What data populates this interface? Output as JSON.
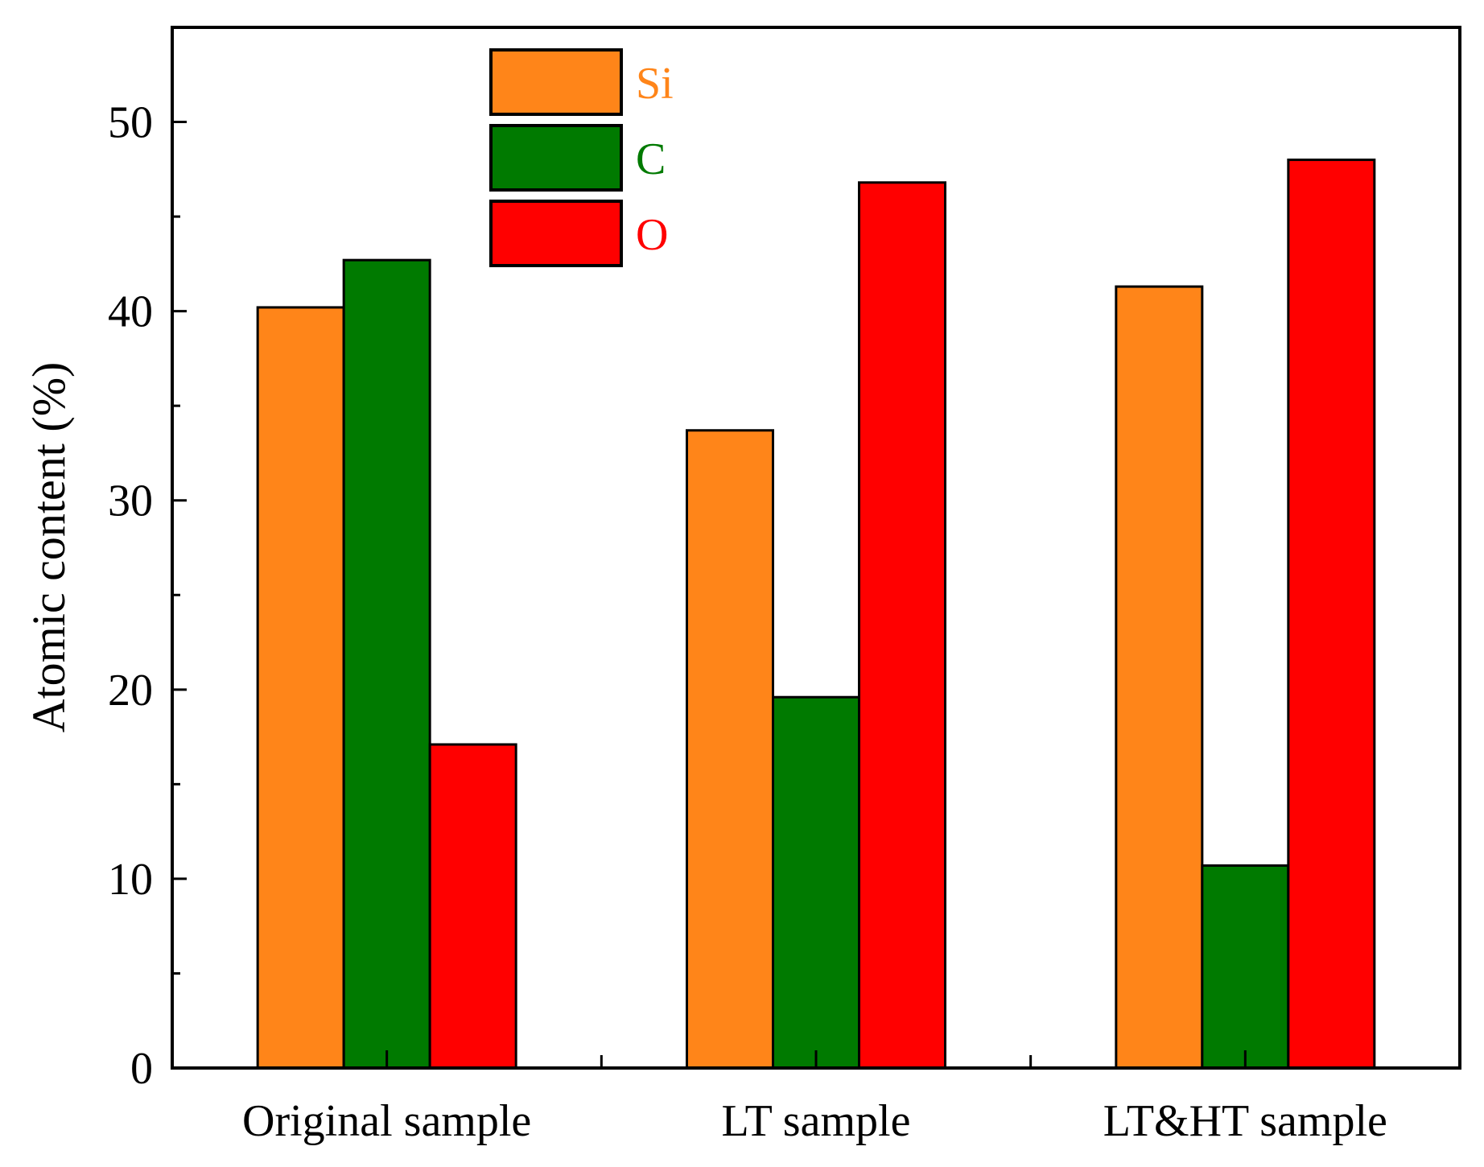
{
  "chart_data": {
    "type": "bar",
    "title": "",
    "xlabel": "",
    "ylabel": "Atomic content (%)",
    "ylim": [
      0,
      55
    ],
    "yticks": [
      0,
      10,
      20,
      30,
      40,
      50
    ],
    "grid": false,
    "legend_position": "top-center",
    "categories": [
      "Original sample",
      "LT sample",
      "LT&HT sample"
    ],
    "series": [
      {
        "name": "Si",
        "color": "#ff8519",
        "values": [
          40.2,
          33.7,
          41.3
        ]
      },
      {
        "name": "C",
        "color": "#007a00",
        "values": [
          42.7,
          19.6,
          10.7
        ]
      },
      {
        "name": "O",
        "color": "#ff0000",
        "values": [
          17.1,
          46.8,
          48.0
        ]
      }
    ]
  }
}
